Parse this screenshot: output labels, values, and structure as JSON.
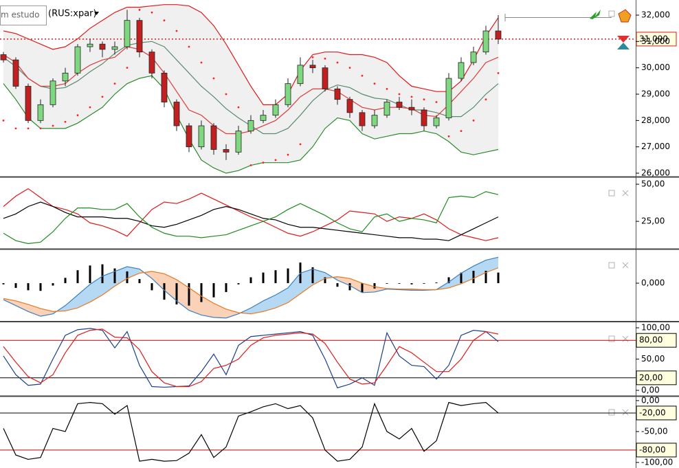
{
  "chart_data": [
    {
      "type": "candlestick",
      "title": "(RUS:xpar)",
      "study_label": "m estudo",
      "up_color": "#7fd87f",
      "down_color": "#c02020",
      "band_fill": "#ececec",
      "open": [
        30500,
        30300,
        29300,
        28000,
        28600,
        29500,
        29800,
        30800,
        30900,
        30700,
        30800,
        31800,
        30600,
        29800,
        28700,
        27800,
        27000,
        27800,
        26900,
        26800,
        27600,
        28000,
        28200,
        28600,
        29400,
        30100,
        30000,
        29200,
        28800,
        28300,
        27800,
        28200,
        28700,
        28500,
        28400,
        27800,
        28100,
        29600,
        30200,
        30600,
        31400
      ],
      "high": [
        30600,
        30400,
        29400,
        28800,
        29600,
        30000,
        30900,
        31100,
        31000,
        31000,
        32200,
        31900,
        30700,
        29900,
        28800,
        27900,
        28000,
        27900,
        27100,
        27800,
        28200,
        28400,
        28800,
        29600,
        30400,
        30300,
        30100,
        29300,
        28900,
        28400,
        28400,
        28800,
        28900,
        28800,
        28500,
        28200,
        29800,
        30400,
        30800,
        31600,
        32000
      ],
      "low": [
        30200,
        29200,
        27900,
        27900,
        28500,
        29300,
        29700,
        30600,
        30400,
        30500,
        30700,
        30400,
        29600,
        28500,
        27600,
        26800,
        26900,
        26700,
        26500,
        26700,
        27500,
        27900,
        28100,
        28500,
        29300,
        29800,
        29100,
        28600,
        28100,
        27600,
        27700,
        28100,
        28400,
        28200,
        27600,
        27700,
        28000,
        29500,
        30100,
        30500,
        30900
      ],
      "close": [
        30300,
        29300,
        28000,
        28600,
        29500,
        29800,
        30800,
        30900,
        30700,
        30800,
        31800,
        30600,
        29800,
        28700,
        27800,
        27000,
        27800,
        26900,
        26800,
        27600,
        28000,
        28200,
        28600,
        29400,
        30100,
        30000,
        29200,
        28800,
        28300,
        27800,
        28200,
        28700,
        28500,
        28400,
        27800,
        28100,
        29600,
        30200,
        30600,
        31400,
        31090
      ],
      "series": [
        {
          "color": "#e01818",
          "values": [
            31400,
            31300,
            31100,
            30900,
            30700,
            30800,
            31100,
            31500,
            31800,
            32100,
            32300,
            32300,
            32350,
            32400,
            32400,
            32350,
            32100,
            31600,
            30900,
            30100,
            29300,
            28600,
            28600,
            29000,
            29900,
            30500,
            30600,
            30600,
            30500,
            30500,
            30400,
            30200,
            29700,
            29300,
            29200,
            29100,
            29100,
            29500,
            30300,
            31200,
            31900
          ]
        },
        {
          "color": "#2a8a2a",
          "values": [
            29400,
            28800,
            28100,
            27700,
            27700,
            27700,
            27900,
            28200,
            28500,
            29000,
            29400,
            29600,
            29700,
            29200,
            28200,
            27300,
            26500,
            26200,
            26000,
            26100,
            26300,
            26400,
            26400,
            26400,
            26500,
            27000,
            27700,
            28100,
            28000,
            27500,
            27300,
            27400,
            27500,
            27500,
            27600,
            27500,
            27200,
            26800,
            26700,
            26800,
            26900
          ]
        },
        {
          "color": "#5a8a6e",
          "values": [
            30400,
            30050,
            29600,
            29300,
            29200,
            29250,
            29500,
            29850,
            30150,
            30550,
            30850,
            30950,
            31000,
            30800,
            30300,
            29800,
            29300,
            28900,
            28450,
            28100,
            27800,
            27500,
            27500,
            27700,
            28200,
            28750,
            29150,
            29350,
            29250,
            29000,
            28850,
            28800,
            28600,
            28400,
            28400,
            28300,
            28150,
            28150,
            28500,
            29000,
            29400
          ]
        },
        {
          "color": "#e03a3a",
          "values": [
            30500,
            30200,
            29600,
            29300,
            29300,
            29400,
            29800,
            30100,
            30300,
            30400,
            30800,
            30700,
            30400,
            29800,
            29100,
            28400,
            28200,
            27800,
            27500,
            27500,
            27600,
            27800,
            28000,
            28400,
            28900,
            29200,
            29200,
            29100,
            28800,
            28500,
            28400,
            28500,
            28500,
            28450,
            28200,
            28150,
            28600,
            29100,
            29600,
            30200,
            30400
          ]
        },
        {
          "color": "#ff2020",
          "style": "dots",
          "values": [
            28000,
            27700,
            27700,
            27700,
            27800,
            27950,
            28200,
            28500,
            28900,
            29400,
            30000,
            32200,
            32100,
            31800,
            31400,
            30800,
            30200,
            29600,
            29000,
            28500,
            26300,
            26400,
            26500,
            26700,
            27100,
            30400,
            30350,
            30200,
            30000,
            29700,
            29400,
            29200,
            29000,
            28900,
            28800,
            28700,
            27400,
            27600,
            28000,
            28800,
            29800
          ]
        }
      ],
      "ylim": [
        25896,
        32574
      ],
      "yticks": [
        {
          "value": 26000,
          "label": "26,000"
        },
        {
          "value": 27000,
          "label": "27,000"
        },
        {
          "value": 28000,
          "label": "28,000"
        },
        {
          "value": 29000,
          "label": "29,000"
        },
        {
          "value": 30000,
          "label": "30,000"
        },
        {
          "value": 31000,
          "label": "31,000"
        },
        {
          "value": 32000,
          "label": "32,000"
        }
      ],
      "last_price": {
        "value": 31090,
        "label": "31,090"
      }
    },
    {
      "type": "line",
      "series": [
        {
          "color": "#e01818",
          "values": [
            35,
            42,
            47,
            41,
            35,
            33,
            30,
            24,
            22,
            19,
            15,
            24,
            33,
            38,
            37,
            40,
            44,
            40,
            36,
            32,
            28,
            25,
            21,
            17,
            15,
            18,
            22,
            26,
            32,
            31,
            30,
            25,
            28,
            27,
            30,
            26,
            20,
            16,
            14,
            12,
            14
          ]
        },
        {
          "color": "#000000",
          "values": [
            27,
            30,
            35,
            38,
            35,
            31,
            28,
            28,
            28,
            27,
            27,
            25,
            22,
            21,
            23,
            26,
            29,
            33,
            35,
            33,
            30,
            27,
            26,
            23,
            21,
            21,
            20,
            19,
            18,
            17,
            16,
            15,
            14,
            14,
            13,
            13,
            12,
            16,
            20,
            24,
            28
          ]
        },
        {
          "color": "#1e8a1e",
          "values": [
            17,
            12,
            10,
            11,
            18,
            27,
            34,
            34,
            33,
            33,
            37,
            28,
            21,
            17,
            15,
            15,
            14,
            15,
            16,
            19,
            22,
            25,
            28,
            33,
            37,
            33,
            29,
            24,
            20,
            18,
            28,
            30,
            25,
            27,
            26,
            24,
            41,
            42,
            41,
            45,
            43
          ]
        }
      ],
      "ylim": [
        7,
        54.2
      ],
      "yticks": [
        {
          "value": 50,
          "label": "50,00"
        },
        {
          "value": 25,
          "label": "25,00"
        }
      ]
    },
    {
      "type": "macd",
      "fill_up": "#b5d9f2",
      "fill_down": "#f9d2b8",
      "histogram_color": "#000000",
      "series": [
        {
          "color": "#3a7fc4",
          "values": [
            -280,
            -380,
            -480,
            -560,
            -520,
            -380,
            -200,
            -20,
            120,
            200,
            280,
            240,
            80,
            -120,
            -300,
            -460,
            -540,
            -580,
            -590,
            -520,
            -420,
            -300,
            -200,
            -80,
            170,
            240,
            180,
            50,
            -40,
            -160,
            -150,
            -100,
            -110,
            -120,
            -120,
            -110,
            20,
            170,
            290,
            390,
            440
          ]
        },
        {
          "color": "#e87820",
          "values": [
            -260,
            -300,
            -360,
            -430,
            -480,
            -470,
            -420,
            -320,
            -200,
            -50,
            80,
            170,
            200,
            160,
            60,
            -80,
            -220,
            -340,
            -440,
            -500,
            -520,
            -480,
            -420,
            -330,
            -180,
            -30,
            80,
            110,
            80,
            0,
            -60,
            -90,
            -100,
            -100,
            -110,
            -110,
            -80,
            -10,
            80,
            180,
            260
          ]
        }
      ],
      "histogram": [
        -20,
        -80,
        -120,
        -130,
        -40,
        90,
        220,
        300,
        320,
        250,
        200,
        70,
        -120,
        -280,
        -360,
        -380,
        -320,
        -240,
        -150,
        -20,
        100,
        180,
        220,
        250,
        350,
        270,
        100,
        -60,
        -120,
        -160,
        -90,
        -10,
        -10,
        -20,
        -10,
        0,
        100,
        180,
        210,
        210,
        180
      ],
      "ylim": [
        -640,
        560
      ],
      "yticks": [
        {
          "value": 0,
          "label": "0,000"
        }
      ]
    },
    {
      "type": "line",
      "series": [
        {
          "color": "#1a3f8a",
          "values": [
            55,
            25,
            8,
            10,
            50,
            88,
            97,
            99,
            96,
            68,
            94,
            40,
            6,
            5,
            6,
            7,
            30,
            58,
            25,
            72,
            86,
            88,
            90,
            92,
            94,
            88,
            50,
            4,
            10,
            20,
            8,
            92,
            55,
            40,
            38,
            18,
            40,
            88,
            96,
            94,
            78
          ]
        },
        {
          "color": "#e01818",
          "values": [
            70,
            45,
            22,
            12,
            25,
            60,
            88,
            96,
            98,
            85,
            84,
            65,
            30,
            12,
            6,
            6,
            14,
            35,
            40,
            50,
            72,
            84,
            88,
            90,
            92,
            90,
            75,
            45,
            18,
            10,
            12,
            40,
            70,
            60,
            45,
            30,
            30,
            50,
            80,
            94,
            90
          ]
        }
      ],
      "ylim": [
        -7.7,
        108.8
      ],
      "yticks": [
        {
          "value": 100,
          "label": "100,00"
        },
        {
          "value": 50,
          "label": "50,00"
        },
        {
          "value": 0,
          "label": "0,00"
        }
      ],
      "levels": [
        {
          "value": 80,
          "label": "80,00",
          "color": "#c00000"
        },
        {
          "value": 20,
          "label": "20,00",
          "color": "#000000"
        }
      ]
    },
    {
      "type": "line",
      "series": [
        {
          "color": "#000000",
          "values": [
            -45,
            -88,
            -95,
            -92,
            -45,
            -50,
            -5,
            -3,
            -5,
            -22,
            -8,
            -98,
            -95,
            -98,
            -97,
            -85,
            -55,
            -92,
            -75,
            -25,
            -18,
            -10,
            -5,
            -13,
            -8,
            -28,
            -80,
            -98,
            -95,
            -75,
            -5,
            -50,
            -62,
            -45,
            -82,
            -65,
            -3,
            -8,
            -5,
            -3,
            -20
          ]
        }
      ],
      "ylim": [
        -109,
        5.5
      ],
      "yticks": [
        {
          "value": 0,
          "label": "0,00"
        },
        {
          "value": -50,
          "label": "-50,00"
        },
        {
          "value": -100,
          "label": "-100,00"
        }
      ],
      "levels": [
        {
          "value": -20,
          "label": "-20,00",
          "color": "#000000"
        },
        {
          "value": -80,
          "label": "-80,00",
          "color": "#c00000"
        }
      ]
    }
  ]
}
